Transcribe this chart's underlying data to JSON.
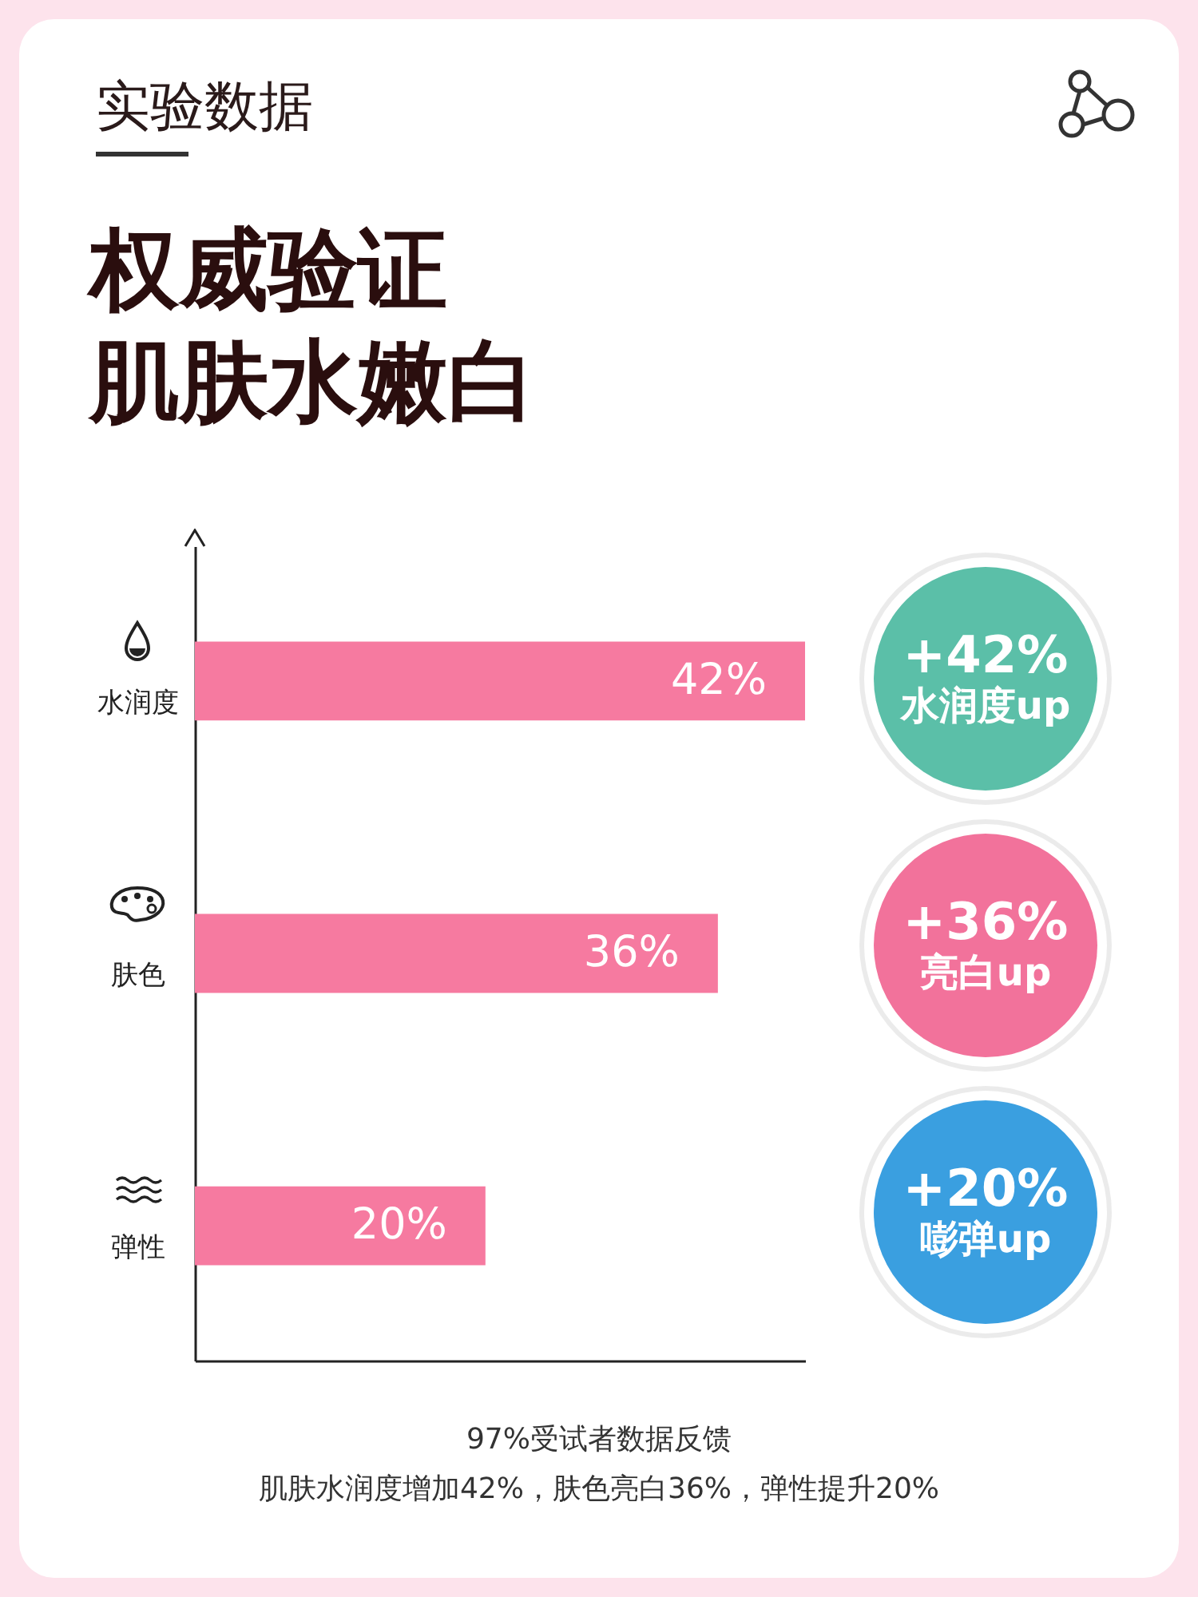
{
  "chart_data": {
    "type": "bar",
    "orientation": "horizontal",
    "title": "实验数据",
    "subtitle": "权威验证",
    "categories": [
      "水润度",
      "肤色",
      "弹性"
    ],
    "values": [
      42,
      36,
      20
    ],
    "color": "#f67aa0",
    "value_labels": [
      "42%",
      "36%",
      "20%"
    ],
    "grid": false,
    "tick_labels": "y",
    "annotations": [
      "肌肤水嫩白",
      "+42%\n水润度up",
      "+36%\n亮白up",
      "+20%\n嘭弹up",
      "97%受试者数据反馈",
      "肌肤水润度增加42%，肤色亮白36%，弹性提升20%"
    ]
  }
}
